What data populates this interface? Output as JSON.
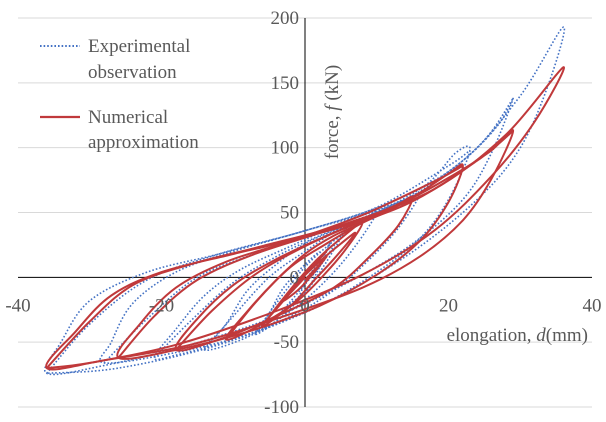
{
  "chart_data": {
    "type": "line",
    "title": "",
    "xlabel": "elongation, d(mm)",
    "ylabel": "force, f (kN)",
    "xlabel_parts": [
      "elongation, ",
      "d",
      "(mm)"
    ],
    "ylabel_parts": [
      "force, ",
      "f",
      " (kN)"
    ],
    "xlim": [
      -40,
      40
    ],
    "ylim": [
      -100,
      200
    ],
    "xticks": [
      -40,
      -20,
      0,
      20,
      40
    ],
    "yticks": [
      -100,
      -50,
      0,
      50,
      100,
      150,
      200
    ],
    "grid": "horizontal",
    "legend_position": "top-left",
    "series": [
      {
        "name": "Experimental observation",
        "legend_lines": [
          "Experimental",
          "observation"
        ],
        "color": "#4472C4",
        "style": "dotted",
        "loops": [
          [
            [
              0,
              -2
            ],
            [
              2,
              12
            ],
            [
              3.5,
              26
            ],
            [
              0.5,
              -8
            ],
            [
              -2,
              -20
            ],
            [
              -3.5,
              -28
            ],
            [
              -1,
              -16
            ],
            [
              0,
              -2
            ]
          ],
          [
            [
              -3.5,
              -28
            ],
            [
              -1,
              -12
            ],
            [
              2,
              8
            ],
            [
              4,
              24
            ],
            [
              6,
              40
            ],
            [
              3,
              12
            ],
            [
              0,
              -12
            ],
            [
              -4,
              -34
            ],
            [
              -7,
              -44
            ],
            [
              -5,
              -28
            ],
            [
              -3,
              -8
            ],
            [
              0,
              10
            ],
            [
              2,
              20
            ]
          ],
          [
            [
              -7,
              -44
            ],
            [
              -4,
              -20
            ],
            [
              0,
              8
            ],
            [
              4,
              28
            ],
            [
              8,
              44
            ],
            [
              10,
              50
            ],
            [
              7,
              24
            ],
            [
              3,
              -2
            ],
            [
              -2,
              -26
            ],
            [
              -8,
              -46
            ],
            [
              -14,
              -56
            ],
            [
              -11,
              -36
            ],
            [
              -8,
              -10
            ],
            [
              -4,
              10
            ],
            [
              0,
              26
            ],
            [
              5,
              38
            ],
            [
              10,
              48
            ]
          ],
          [
            [
              -14,
              -56
            ],
            [
              -10,
              -30
            ],
            [
              -5,
              0
            ],
            [
              0,
              20
            ],
            [
              5,
              38
            ],
            [
              10,
              50
            ],
            [
              14,
              60
            ],
            [
              16,
              64
            ],
            [
              13,
              38
            ],
            [
              9,
              14
            ],
            [
              4,
              -10
            ],
            [
              -2,
              -30
            ],
            [
              -10,
              -48
            ],
            [
              -18,
              -60
            ],
            [
              -21,
              -62
            ],
            [
              -18,
              -40
            ],
            [
              -14,
              -14
            ],
            [
              -9,
              6
            ],
            [
              -2,
              24
            ],
            [
              6,
              44
            ],
            [
              14,
              60
            ],
            [
              16,
              64
            ]
          ],
          [
            [
              -21,
              -62
            ],
            [
              -16,
              -34
            ],
            [
              -10,
              -4
            ],
            [
              -4,
              16
            ],
            [
              2,
              32
            ],
            [
              10,
              50
            ],
            [
              17,
              72
            ],
            [
              21,
              96
            ],
            [
              23,
              98
            ],
            [
              20,
              60
            ],
            [
              16,
              30
            ],
            [
              10,
              4
            ],
            [
              2,
              -22
            ],
            [
              -8,
              -44
            ],
            [
              -18,
              -58
            ],
            [
              -28,
              -66
            ],
            [
              -27,
              -50
            ],
            [
              -24,
              -20
            ],
            [
              -18,
              4
            ],
            [
              -10,
              20
            ],
            [
              0,
              36
            ],
            [
              10,
              54
            ],
            [
              20,
              86
            ],
            [
              23,
              98
            ]
          ],
          [
            [
              -28,
              -66
            ],
            [
              -22,
              -32
            ],
            [
              -15,
              0
            ],
            [
              -6,
              20
            ],
            [
              4,
              38
            ],
            [
              14,
              60
            ],
            [
              22,
              90
            ],
            [
              27,
              118
            ],
            [
              29,
              138
            ],
            [
              26,
              96
            ],
            [
              22,
              60
            ],
            [
              15,
              26
            ],
            [
              6,
              -4
            ],
            [
              -4,
              -30
            ],
            [
              -16,
              -52
            ],
            [
              -28,
              -68
            ],
            [
              -36,
              -74
            ],
            [
              -34,
              -50
            ],
            [
              -30,
              -18
            ],
            [
              -22,
              4
            ],
            [
              -12,
              18
            ],
            [
              0,
              36
            ],
            [
              14,
              60
            ],
            [
              24,
              100
            ],
            [
              29,
              138
            ]
          ],
          [
            [
              -36,
              -74
            ],
            [
              -30,
              -36
            ],
            [
              -22,
              -2
            ],
            [
              -12,
              18
            ],
            [
              0,
              36
            ],
            [
              12,
              58
            ],
            [
              22,
              90
            ],
            [
              30,
              140
            ],
            [
              36,
              193
            ],
            [
              34,
              150
            ],
            [
              30,
              100
            ],
            [
              24,
              60
            ],
            [
              14,
              16
            ],
            [
              2,
              -22
            ],
            [
              -12,
              -52
            ],
            [
              -26,
              -70
            ],
            [
              -36,
              -74
            ]
          ]
        ]
      },
      {
        "name": "Numerical approximation",
        "legend_lines": [
          "Numerical",
          "approximation"
        ],
        "color": "#C0393B",
        "style": "solid",
        "loops": [
          [
            [
              0,
              -2
            ],
            [
              2,
              10
            ],
            [
              3,
              16
            ],
            [
              1,
              2
            ],
            [
              -1,
              -10
            ],
            [
              -3,
              -18
            ],
            [
              -1,
              -6
            ],
            [
              0,
              0
            ]
          ],
          [
            [
              -3,
              -18
            ],
            [
              -1,
              -4
            ],
            [
              2,
              12
            ],
            [
              5,
              26
            ],
            [
              7,
              34
            ],
            [
              4,
              14
            ],
            [
              1,
              -4
            ],
            [
              -2,
              -22
            ],
            [
              -6,
              -38
            ],
            [
              -3,
              -18
            ],
            [
              0,
              2
            ],
            [
              3,
              20
            ]
          ],
          [
            [
              -6,
              -38
            ],
            [
              -3,
              -16
            ],
            [
              1,
              10
            ],
            [
              5,
              30
            ],
            [
              8,
              42
            ],
            [
              6,
              24
            ],
            [
              3,
              4
            ],
            [
              -1,
              -18
            ],
            [
              -6,
              -36
            ],
            [
              -11,
              -48
            ],
            [
              -8,
              -26
            ],
            [
              -4,
              -2
            ],
            [
              0,
              18
            ],
            [
              4,
              32
            ],
            [
              8,
              42
            ]
          ],
          [
            [
              -11,
              -48
            ],
            [
              -7,
              -20
            ],
            [
              -2,
              8
            ],
            [
              3,
              26
            ],
            [
              8,
              42
            ],
            [
              12,
              52
            ],
            [
              15,
              62
            ],
            [
              13,
              40
            ],
            [
              9,
              16
            ],
            [
              4,
              -8
            ],
            [
              -4,
              -30
            ],
            [
              -12,
              -48
            ],
            [
              -18,
              -56
            ],
            [
              -15,
              -32
            ],
            [
              -10,
              -6
            ],
            [
              -4,
              14
            ],
            [
              3,
              32
            ],
            [
              10,
              48
            ],
            [
              15,
              62
            ]
          ],
          [
            [
              -18,
              -56
            ],
            [
              -13,
              -26
            ],
            [
              -7,
              2
            ],
            [
              0,
              24
            ],
            [
              8,
              44
            ],
            [
              15,
              62
            ],
            [
              20,
              80
            ],
            [
              22,
              86
            ],
            [
              20,
              58
            ],
            [
              16,
              28
            ],
            [
              10,
              2
            ],
            [
              2,
              -22
            ],
            [
              -8,
              -42
            ],
            [
              -18,
              -56
            ],
            [
              -26,
              -62
            ],
            [
              -23,
              -36
            ],
            [
              -18,
              -8
            ],
            [
              -11,
              12
            ],
            [
              -2,
              28
            ],
            [
              8,
              48
            ],
            [
              18,
              74
            ],
            [
              22,
              86
            ]
          ],
          [
            [
              -26,
              -62
            ],
            [
              -21,
              -30
            ],
            [
              -15,
              -2
            ],
            [
              -7,
              18
            ],
            [
              3,
              36
            ],
            [
              13,
              56
            ],
            [
              21,
              80
            ],
            [
              26,
              98
            ],
            [
              29,
              113
            ],
            [
              26,
              76
            ],
            [
              22,
              44
            ],
            [
              16,
              16
            ],
            [
              8,
              -8
            ],
            [
              -4,
              -32
            ],
            [
              -16,
              -52
            ],
            [
              -28,
              -64
            ],
            [
              -36,
              -70
            ],
            [
              -32,
              -42
            ],
            [
              -27,
              -14
            ],
            [
              -20,
              4
            ],
            [
              -10,
              18
            ],
            [
              2,
              34
            ],
            [
              14,
              56
            ],
            [
              24,
              90
            ],
            [
              29,
              113
            ]
          ],
          [
            [
              -36,
              -70
            ],
            [
              -30,
              -34
            ],
            [
              -24,
              -6
            ],
            [
              -16,
              10
            ],
            [
              -6,
              24
            ],
            [
              6,
              42
            ],
            [
              18,
              68
            ],
            [
              28,
              110
            ],
            [
              36,
              162
            ],
            [
              32,
              120
            ],
            [
              26,
              78
            ],
            [
              18,
              36
            ],
            [
              8,
              2
            ],
            [
              -4,
              -26
            ],
            [
              -18,
              -52
            ],
            [
              -30,
              -66
            ],
            [
              -36,
              -70
            ]
          ]
        ]
      }
    ]
  }
}
